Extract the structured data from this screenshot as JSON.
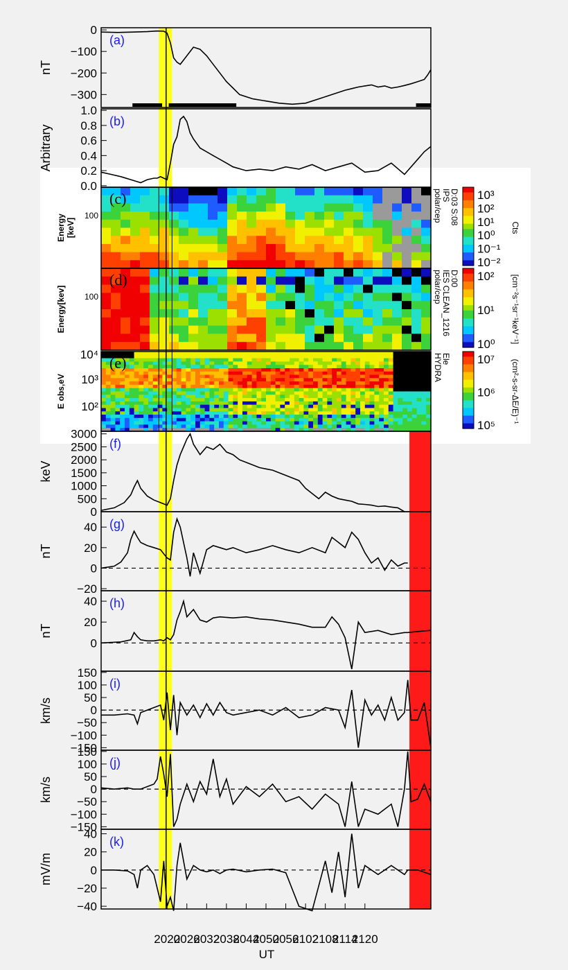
{
  "figure": {
    "xlabel": "UT",
    "time_range": [
      2020,
      2120
    ],
    "time_ticks": [
      "2020",
      "2026",
      "2032",
      "2038",
      "2044",
      "2050",
      "2056",
      "2102",
      "2108",
      "2114",
      "2120"
    ],
    "highlight_yellow_range": [
      2037.5,
      2041.5
    ],
    "highlight_red_range": [
      2113.5,
      2120
    ],
    "vertical_line": 2039.7
  },
  "chart_data": [
    {
      "panel": "(a)",
      "type": "line",
      "ylabel": "nT",
      "yticks": [
        "0",
        "−100",
        "−200",
        "−300"
      ],
      "ylim": [
        -360,
        10
      ],
      "x": [
        2020,
        2025,
        2030,
        2034,
        2037,
        2039,
        2040,
        2041,
        2042,
        2043,
        2044,
        2045,
        2046,
        2048,
        2050,
        2052,
        2054,
        2056,
        2058,
        2060,
        2062,
        2066,
        2070,
        2074,
        2078,
        2082,
        2086,
        2090,
        2094,
        2098,
        2100,
        2102,
        2104,
        2106,
        2108,
        2110,
        2112,
        2114,
        2116,
        2118,
        2119,
        2120
      ],
      "y": [
        -10,
        -12,
        -10,
        -8,
        -5,
        -6,
        -15,
        -60,
        -130,
        -150,
        -160,
        -140,
        -120,
        -80,
        -90,
        -120,
        -160,
        -200,
        -240,
        -270,
        -300,
        -320,
        -330,
        -340,
        -345,
        -340,
        -320,
        -300,
        -280,
        -265,
        -260,
        -255,
        -265,
        -260,
        -270,
        -265,
        -258,
        -250,
        -240,
        -230,
        -210,
        -185
      ],
      "bars": [
        [
          2029.5,
          2038.5
        ],
        [
          2040.5,
          2061
        ],
        [
          2115.5,
          2120
        ]
      ]
    },
    {
      "panel": "(b)",
      "type": "line",
      "ylabel": "Arbitrary",
      "yticks": [
        "0.0",
        "0.2",
        "0.4",
        "0.6",
        "0.8",
        "1.0"
      ],
      "ylim": [
        -0.02,
        1.02
      ],
      "x": [
        2020,
        2023,
        2026,
        2029,
        2032,
        2034,
        2036,
        2037,
        2038,
        2039,
        2040,
        2041,
        2042,
        2043,
        2044,
        2045,
        2046,
        2047,
        2048,
        2050,
        2052,
        2054,
        2056,
        2058,
        2060,
        2064,
        2068,
        2072,
        2076,
        2080,
        2084,
        2088,
        2092,
        2096,
        2100,
        2104,
        2108,
        2112,
        2116,
        2118,
        2120
      ],
      "y": [
        0.18,
        0.15,
        0.12,
        0.08,
        0.04,
        0.08,
        0.1,
        0.1,
        0.12,
        0.1,
        0.08,
        0.3,
        0.55,
        0.65,
        0.88,
        0.92,
        0.85,
        0.7,
        0.62,
        0.5,
        0.45,
        0.4,
        0.35,
        0.3,
        0.25,
        0.2,
        0.22,
        0.2,
        0.25,
        0.22,
        0.28,
        0.2,
        0.25,
        0.3,
        0.18,
        0.2,
        0.3,
        0.15,
        0.35,
        0.45,
        0.52
      ]
    },
    {
      "panel": "(c)",
      "type": "heatmap",
      "ylabel": "Energy",
      "ylabel_units": "[keV]",
      "yticks": [
        "100"
      ],
      "side_label": [
        "polar/cep",
        "IPS",
        "D:03 S:08"
      ],
      "colorbar_title": "Cts",
      "colorbar_ticks": [
        "10⁻²",
        "10⁻¹",
        "10⁰",
        "10¹",
        "10²",
        "10³"
      ]
    },
    {
      "panel": "(d)",
      "type": "heatmap",
      "ylabel": "Energy[kev]",
      "yticks": [
        "100"
      ],
      "side_label": [
        "polar/cep",
        "IES CLEAN_1216",
        "D:00"
      ],
      "colorbar_title": "[cm⁻²s⁻¹sr⁻¹keV⁻¹]",
      "colorbar_ticks": [
        "10⁰",
        "10¹",
        "10²"
      ]
    },
    {
      "panel": "(e)",
      "type": "heatmap",
      "ylabel": "E obs,eV",
      "yticks": [
        "10²",
        "10³",
        "10⁴"
      ],
      "side_label": [
        "HYDRA",
        "Ele"
      ],
      "colorbar_title": "(cm²-s-sr-ΔE/E)⁻¹",
      "colorbar_ticks": [
        "10⁵",
        "10⁶",
        "10⁷"
      ]
    },
    {
      "panel": "(f)",
      "type": "line",
      "ylabel": "keV",
      "yticks": [
        "0",
        "500",
        "1000",
        "1500",
        "2000",
        "2500",
        "3000"
      ],
      "ylim": [
        0,
        3100
      ],
      "x": [
        2020,
        2024,
        2027,
        2029,
        2030,
        2031,
        2032,
        2034,
        2036,
        2038,
        2039,
        2040,
        2041,
        2042,
        2043,
        2044,
        2045,
        2046,
        2047,
        2048,
        2050,
        2052,
        2054,
        2056,
        2058,
        2060,
        2062,
        2064,
        2066,
        2068,
        2070,
        2072,
        2074,
        2076,
        2078,
        2080,
        2082,
        2084,
        2086,
        2088,
        2090,
        2092,
        2094,
        2096,
        2098,
        2100,
        2102,
        2104,
        2106,
        2108,
        2110,
        2112
      ],
      "y": [
        50,
        150,
        350,
        650,
        950,
        1200,
        900,
        600,
        450,
        350,
        300,
        250,
        500,
        1200,
        1800,
        2200,
        2500,
        2800,
        3000,
        2600,
        2200,
        2500,
        2400,
        2600,
        2300,
        2200,
        2000,
        1900,
        1800,
        1700,
        1650,
        1600,
        1500,
        1400,
        1300,
        1200,
        900,
        700,
        500,
        750,
        600,
        500,
        450,
        400,
        300,
        280,
        250,
        200,
        220,
        180,
        150,
        0
      ]
    },
    {
      "panel": "(g)",
      "type": "line",
      "ylabel": "nT",
      "yticks": [
        "−20",
        "0",
        "20",
        "40"
      ],
      "ylim": [
        -22,
        55
      ],
      "x": [
        2020,
        2024,
        2026,
        2028,
        2029,
        2030,
        2031,
        2032,
        2034,
        2036,
        2038,
        2039,
        2040,
        2041,
        2042,
        2043,
        2044,
        2045,
        2046,
        2047,
        2048,
        2050,
        2052,
        2054,
        2056,
        2058,
        2060,
        2064,
        2068,
        2072,
        2076,
        2080,
        2084,
        2088,
        2090,
        2092,
        2094,
        2096,
        2098,
        2100,
        2102,
        2104,
        2106,
        2108,
        2110,
        2112,
        2113
      ],
      "y": [
        0,
        2,
        6,
        15,
        28,
        36,
        30,
        25,
        22,
        20,
        18,
        14,
        10,
        8,
        35,
        48,
        40,
        25,
        10,
        -8,
        15,
        -5,
        18,
        22,
        20,
        18,
        20,
        15,
        18,
        22,
        18,
        15,
        20,
        15,
        30,
        25,
        20,
        35,
        28,
        15,
        5,
        10,
        -2,
        8,
        2,
        5,
        5
      ]
    },
    {
      "panel": "(h)",
      "type": "line",
      "ylabel": "nT",
      "yticks": [
        "0",
        "20",
        "40"
      ],
      "ylim": [
        -27,
        50
      ],
      "x": [
        2020,
        2026,
        2029,
        2030,
        2031,
        2032,
        2034,
        2036,
        2038,
        2039,
        2040,
        2041,
        2042,
        2043,
        2044,
        2045,
        2046,
        2048,
        2050,
        2052,
        2054,
        2056,
        2060,
        2064,
        2068,
        2072,
        2076,
        2080,
        2084,
        2088,
        2090,
        2092,
        2094,
        2096,
        2098,
        2100,
        2104,
        2108,
        2112,
        2113,
        2116,
        2120
      ],
      "y": [
        0,
        1,
        3,
        10,
        6,
        3,
        2,
        2,
        3,
        2,
        5,
        3,
        8,
        22,
        30,
        40,
        25,
        32,
        22,
        20,
        24,
        25,
        24,
        25,
        23,
        22,
        20,
        18,
        15,
        15,
        25,
        18,
        5,
        -25,
        20,
        10,
        12,
        8,
        10,
        10,
        11,
        12
      ]
    },
    {
      "panel": "(i)",
      "type": "line",
      "ylabel": "km/s",
      "yticks": [
        "−150",
        "−100",
        "−50",
        "0",
        "50",
        "100",
        "150"
      ],
      "ylim": [
        -160,
        155
      ],
      "x": [
        2020,
        2024,
        2028,
        2030,
        2031,
        2032,
        2034,
        2036,
        2038,
        2039,
        2040,
        2041,
        2042,
        2043,
        2044,
        2046,
        2048,
        2050,
        2052,
        2054,
        2056,
        2058,
        2060,
        2064,
        2068,
        2072,
        2076,
        2080,
        2084,
        2088,
        2092,
        2094,
        2096,
        2098,
        2100,
        2102,
        2104,
        2106,
        2108,
        2110,
        2112,
        2113,
        2114,
        2116,
        2118,
        2120
      ],
      "y": [
        -20,
        -20,
        -15,
        -20,
        -55,
        -10,
        0,
        10,
        20,
        -40,
        70,
        -80,
        60,
        -100,
        30,
        -20,
        20,
        -30,
        25,
        -20,
        30,
        -10,
        -20,
        -10,
        0,
        -20,
        10,
        -30,
        -20,
        10,
        0,
        -70,
        80,
        -150,
        40,
        -20,
        20,
        -40,
        50,
        -40,
        -10,
        120,
        -40,
        -40,
        30,
        -150
      ]
    },
    {
      "panel": "(j)",
      "type": "line",
      "ylabel": "km/s",
      "yticks": [
        "−150",
        "−100",
        "−50",
        "0",
        "50",
        "100",
        "150"
      ],
      "ylim": [
        -160,
        155
      ],
      "x": [
        2020,
        2024,
        2028,
        2030,
        2032,
        2034,
        2036,
        2037,
        2038,
        2039,
        2040,
        2041,
        2042,
        2043,
        2044,
        2046,
        2048,
        2050,
        2052,
        2054,
        2056,
        2058,
        2060,
        2064,
        2068,
        2072,
        2076,
        2080,
        2084,
        2088,
        2092,
        2094,
        2096,
        2098,
        2100,
        2104,
        2108,
        2110,
        2112,
        2113,
        2114,
        2116,
        2118,
        2120
      ],
      "y": [
        5,
        0,
        5,
        0,
        0,
        10,
        20,
        40,
        130,
        60,
        -30,
        140,
        -150,
        -120,
        -60,
        20,
        -50,
        30,
        -20,
        120,
        -30,
        40,
        -60,
        10,
        -30,
        20,
        -50,
        -30,
        -80,
        -20,
        -60,
        -150,
        30,
        -150,
        -80,
        -100,
        -60,
        -150,
        0,
        150,
        -50,
        -40,
        20,
        -50
      ]
    },
    {
      "panel": "(k)",
      "type": "line",
      "ylabel": "mV/m",
      "yticks": [
        "−40",
        "−20",
        "0",
        "20",
        "40"
      ],
      "ylim": [
        -43,
        45
      ],
      "x": [
        2020,
        2024,
        2028,
        2030,
        2031,
        2032,
        2034,
        2036,
        2038,
        2039,
        2040,
        2041,
        2042,
        2043,
        2044,
        2046,
        2048,
        2050,
        2052,
        2054,
        2056,
        2058,
        2060,
        2064,
        2068,
        2072,
        2076,
        2080,
        2084,
        2088,
        2090,
        2092,
        2094,
        2096,
        2098,
        2100,
        2104,
        2108,
        2112,
        2113,
        2116,
        2120
      ],
      "y": [
        0,
        0,
        -1,
        -5,
        -20,
        0,
        5,
        -5,
        -35,
        10,
        -40,
        -30,
        -45,
        5,
        30,
        -10,
        5,
        0,
        -2,
        0,
        -4,
        0,
        1,
        -2,
        0,
        1,
        -3,
        -40,
        -45,
        10,
        -25,
        20,
        -30,
        40,
        -20,
        5,
        -5,
        5,
        -5,
        0,
        0,
        -5
      ]
    }
  ]
}
